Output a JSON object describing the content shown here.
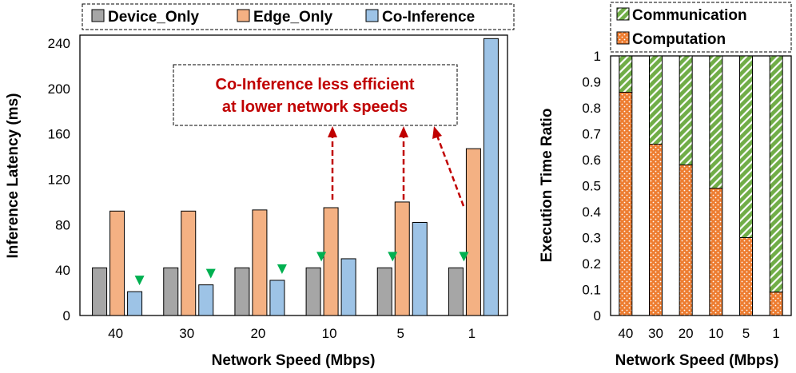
{
  "chart_data": [
    {
      "type": "bar",
      "categories": [
        "40",
        "30",
        "20",
        "10",
        "5",
        "1"
      ],
      "series": [
        {
          "name": "Device_Only",
          "color": "#a6a6a6",
          "values": [
            42,
            42,
            42,
            42,
            42,
            42
          ]
        },
        {
          "name": "Edge_Only",
          "color": "#f4b183",
          "values": [
            92,
            92,
            93,
            95,
            100,
            147
          ]
        },
        {
          "name": "Co-Inference",
          "color": "#9dc3e6",
          "values": [
            21,
            27,
            31,
            50,
            82,
            250
          ]
        }
      ],
      "xlabel": "Network Speed (Mbps)",
      "ylabel": "Inference Latency (ms)",
      "ylim": [
        0,
        240
      ],
      "yticks": [
        "0",
        "40",
        "80",
        "120",
        "160",
        "200",
        "240"
      ],
      "legend_position": "top",
      "grid": false,
      "annotation": {
        "lines": [
          "Co-Inference less efficient",
          "at lower network speeds"
        ],
        "color": "#c00000"
      },
      "markers": {
        "color": "#00b050",
        "categories": [
          "40",
          "30",
          "20",
          "10",
          "5",
          "1"
        ]
      }
    },
    {
      "type": "bar",
      "stacked": true,
      "categories": [
        "40",
        "30",
        "20",
        "10",
        "5",
        "1"
      ],
      "series": [
        {
          "name": "Computation",
          "color": "#ed7d31",
          "pattern": "dots",
          "values": [
            0.86,
            0.66,
            0.58,
            0.49,
            0.3,
            0.09
          ]
        },
        {
          "name": "Communication",
          "color": "#70ad47",
          "pattern": "diagonal",
          "values": [
            0.14,
            0.34,
            0.42,
            0.51,
            0.7,
            0.91
          ]
        }
      ],
      "xlabel": "Network Speed (Mbps)",
      "ylabel": "Execution Time Ratio",
      "ylim": [
        0,
        1
      ],
      "yticks": [
        "0",
        "0.1",
        "0.2",
        "0.3",
        "0.4",
        "0.5",
        "0.6",
        "0.7",
        "0.8",
        "0.9",
        "1"
      ],
      "legend_position": "top",
      "grid": false
    }
  ]
}
